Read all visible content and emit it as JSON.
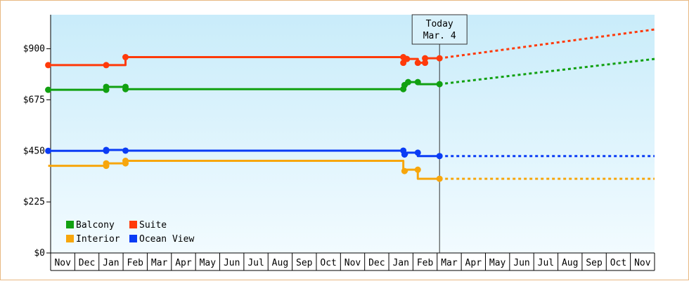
{
  "chart_data": {
    "type": "line",
    "y_axis": {
      "ticks": [
        0,
        225,
        450,
        675,
        900
      ],
      "tick_labels": [
        "$0",
        "$225",
        "$450",
        "$675",
        "$900"
      ],
      "ylim": [
        0,
        1050
      ]
    },
    "x_axis": {
      "month_labels": [
        "Nov",
        "Dec",
        "Jan",
        "Feb",
        "Mar",
        "Apr",
        "May",
        "Jun",
        "Jul",
        "Aug",
        "Sep",
        "Oct",
        "Nov",
        "Dec",
        "Jan",
        "Feb",
        "Mar",
        "Apr",
        "May",
        "Jun",
        "Jul",
        "Aug",
        "Sep",
        "Oct",
        "Nov"
      ],
      "months_span": 25
    },
    "today_marker": {
      "line1": "Today",
      "line2": "Mar. 4",
      "month_index": 16.1
    },
    "grid": false,
    "legend": {
      "placement": "bottom-left"
    },
    "series": [
      {
        "name": "Balcony",
        "color": "#11a011",
        "actual": [
          [
            -0.1,
            719
          ],
          [
            2.3,
            719
          ],
          [
            2.3,
            732
          ],
          [
            3.1,
            732
          ],
          [
            3.1,
            722
          ],
          [
            14.6,
            722
          ],
          [
            14.6,
            740
          ],
          [
            14.75,
            740
          ],
          [
            14.75,
            753
          ],
          [
            15.2,
            753
          ],
          [
            15.2,
            744
          ],
          [
            16.1,
            744
          ]
        ],
        "projected": [
          [
            16.1,
            744
          ],
          [
            25.0,
            855
          ]
        ]
      },
      {
        "name": "Suite",
        "color": "#ff3a0a",
        "actual": [
          [
            -0.1,
            828
          ],
          [
            3.1,
            828
          ],
          [
            3.1,
            863
          ],
          [
            14.6,
            863
          ],
          [
            14.6,
            838
          ],
          [
            14.7,
            855
          ],
          [
            15.2,
            855
          ],
          [
            15.2,
            838
          ],
          [
            15.5,
            838
          ],
          [
            15.5,
            858
          ],
          [
            16.1,
            858
          ]
        ],
        "projected": [
          [
            16.1,
            858
          ],
          [
            25.0,
            985
          ]
        ]
      },
      {
        "name": "Interior",
        "color": "#f7a60c",
        "actual": [
          [
            -0.1,
            384
          ],
          [
            2.3,
            384
          ],
          [
            2.3,
            395
          ],
          [
            3.1,
            395
          ],
          [
            3.1,
            406
          ],
          [
            14.6,
            406
          ],
          [
            14.6,
            361
          ],
          [
            14.75,
            361
          ],
          [
            14.75,
            367
          ],
          [
            15.2,
            367
          ],
          [
            15.2,
            327
          ],
          [
            16.1,
            327
          ]
        ],
        "projected": [
          [
            16.1,
            327
          ],
          [
            25.0,
            327
          ]
        ]
      },
      {
        "name": "Ocean View",
        "color": "#0a3cf5",
        "actual": [
          [
            -0.1,
            450
          ],
          [
            2.3,
            450
          ],
          [
            2.3,
            454
          ],
          [
            3.1,
            454
          ],
          [
            3.1,
            451
          ],
          [
            14.6,
            451
          ],
          [
            14.6,
            434
          ],
          [
            14.75,
            434
          ],
          [
            14.75,
            442
          ],
          [
            15.2,
            442
          ],
          [
            15.2,
            427
          ],
          [
            16.1,
            427
          ]
        ],
        "projected": [
          [
            16.1,
            427
          ],
          [
            25.0,
            427
          ]
        ]
      }
    ],
    "markers": {
      "Balcony": [
        [
          -0.1,
          719
        ],
        [
          2.3,
          719
        ],
        [
          2.3,
          732
        ],
        [
          3.1,
          732
        ],
        [
          3.1,
          722
        ],
        [
          14.6,
          722
        ],
        [
          14.65,
          740
        ],
        [
          14.8,
          753
        ],
        [
          15.2,
          753
        ],
        [
          16.1,
          744
        ]
      ],
      "Suite": [
        [
          -0.1,
          828
        ],
        [
          2.3,
          828
        ],
        [
          3.1,
          863
        ],
        [
          14.6,
          863
        ],
        [
          14.6,
          838
        ],
        [
          14.75,
          855
        ],
        [
          15.2,
          838
        ],
        [
          15.5,
          838
        ],
        [
          15.5,
          858
        ],
        [
          16.1,
          858
        ]
      ],
      "Interior": [
        [
          2.3,
          384
        ],
        [
          2.3,
          395
        ],
        [
          3.1,
          395
        ],
        [
          3.1,
          406
        ],
        [
          14.65,
          361
        ],
        [
          15.2,
          367
        ],
        [
          16.1,
          327
        ]
      ],
      "Ocean View": [
        [
          -0.1,
          450
        ],
        [
          2.3,
          450
        ],
        [
          2.3,
          454
        ],
        [
          3.1,
          451
        ],
        [
          14.6,
          451
        ],
        [
          14.65,
          434
        ],
        [
          15.2,
          442
        ],
        [
          16.1,
          427
        ]
      ]
    }
  }
}
